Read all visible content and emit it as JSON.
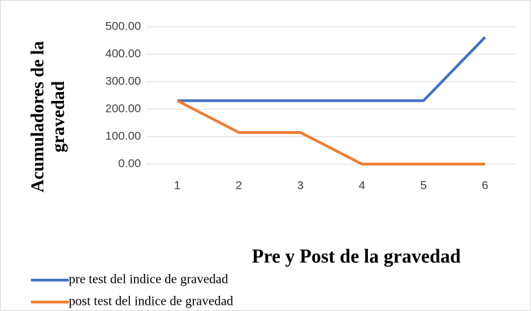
{
  "chart_data": {
    "type": "line",
    "x_label": "Pre y Post de la gravedad",
    "y_label": "Acumuladores de la gravedad",
    "categories": [
      "1",
      "2",
      "3",
      "4",
      "5",
      "6"
    ],
    "series": [
      {
        "name": "pre test del indice de gravedad",
        "color": "#4472c4",
        "values": [
          231,
          231,
          231,
          231,
          231,
          462
        ]
      },
      {
        "name": "post test del indice de gravedad",
        "color": "#ed7d31",
        "values": [
          231,
          115,
          115,
          0,
          0,
          0
        ]
      }
    ],
    "ylim": [
      0,
      500
    ],
    "yticks": [
      {
        "value": 0,
        "label": "0.00"
      },
      {
        "value": 100,
        "label": "100.00"
      },
      {
        "value": 200,
        "label": "200.00"
      },
      {
        "value": 300,
        "label": "300.00"
      },
      {
        "value": 400,
        "label": "400.00"
      },
      {
        "value": 500,
        "label": "500.00"
      }
    ],
    "grid": true,
    "legend": "bottom-left"
  }
}
